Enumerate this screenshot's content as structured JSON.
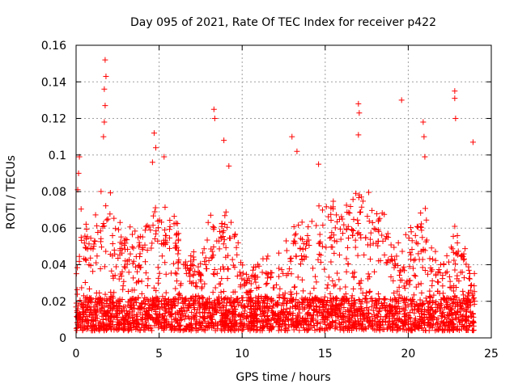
{
  "chart_data": {
    "type": "scatter",
    "title": "Day 095 of 2021, Rate Of TEC Index for receiver p422",
    "xlabel": "GPS time / hours",
    "ylabel": "ROTI / TECUs",
    "xlim": [
      0,
      25
    ],
    "ylim": [
      0,
      0.16
    ],
    "grid": true,
    "marker": "+",
    "color": "#ff0000",
    "x_ticks": [
      0,
      5,
      10,
      15,
      20,
      25
    ],
    "y_ticks": [
      0,
      0.02,
      0.04,
      0.06,
      0.08,
      0.1,
      0.12,
      0.14,
      0.16
    ],
    "x_tick_labels": [
      "0",
      "5",
      "10",
      "15",
      "20",
      "25"
    ],
    "y_tick_labels": [
      "0",
      "0.02",
      "0.04",
      "0.06",
      "0.08",
      "0.1",
      "0.12",
      "0.14",
      "0.16"
    ],
    "data_range_hours": [
      0,
      24
    ],
    "notable_points": [
      {
        "x": 1.75,
        "y": 0.152
      },
      {
        "x": 1.8,
        "y": 0.143
      },
      {
        "x": 1.7,
        "y": 0.136
      },
      {
        "x": 1.75,
        "y": 0.127
      },
      {
        "x": 1.7,
        "y": 0.118
      },
      {
        "x": 1.65,
        "y": 0.11
      },
      {
        "x": 0.2,
        "y": 0.099
      },
      {
        "x": 0.15,
        "y": 0.09
      },
      {
        "x": 0.1,
        "y": 0.081
      },
      {
        "x": 4.7,
        "y": 0.112
      },
      {
        "x": 4.8,
        "y": 0.104
      },
      {
        "x": 4.6,
        "y": 0.096
      },
      {
        "x": 5.3,
        "y": 0.099
      },
      {
        "x": 8.3,
        "y": 0.125
      },
      {
        "x": 8.35,
        "y": 0.12
      },
      {
        "x": 8.9,
        "y": 0.108
      },
      {
        "x": 9.2,
        "y": 0.094
      },
      {
        "x": 13.0,
        "y": 0.11
      },
      {
        "x": 13.3,
        "y": 0.102
      },
      {
        "x": 14.6,
        "y": 0.095
      },
      {
        "x": 17.0,
        "y": 0.128
      },
      {
        "x": 17.05,
        "y": 0.123
      },
      {
        "x": 17.0,
        "y": 0.111
      },
      {
        "x": 19.6,
        "y": 0.13
      },
      {
        "x": 20.9,
        "y": 0.118
      },
      {
        "x": 20.95,
        "y": 0.11
      },
      {
        "x": 21.0,
        "y": 0.099
      },
      {
        "x": 22.8,
        "y": 0.135
      },
      {
        "x": 22.8,
        "y": 0.131
      },
      {
        "x": 22.85,
        "y": 0.12
      },
      {
        "x": 23.9,
        "y": 0.107
      }
    ]
  }
}
